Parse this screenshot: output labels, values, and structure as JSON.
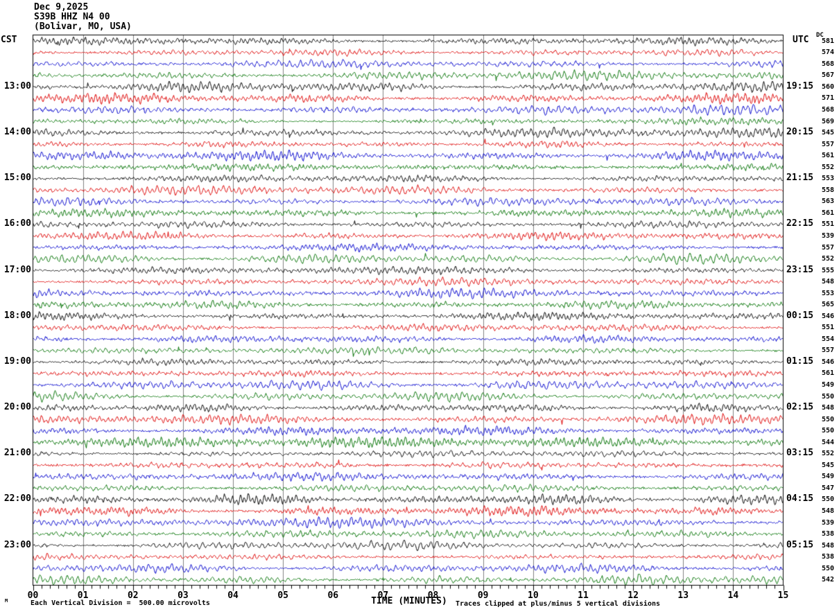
{
  "header": {
    "date": "Dec 9,2025",
    "station_line": "S39B HHZ N4 00",
    "location_line": "(Bolivar, MO, USA)"
  },
  "axes": {
    "left_timezone_label": "CST",
    "right_timezone_label": "UTC",
    "dc_column_label": "DC",
    "x_axis_title": "TIME (MINUTES)",
    "x_tick_labels": [
      "00",
      "01",
      "02",
      "03",
      "04",
      "05",
      "06",
      "07",
      "08",
      "09",
      "10",
      "11",
      "12",
      "13",
      "14",
      "15"
    ],
    "minutes_per_line": 15,
    "minor_tick_intervals_per_minute": 6
  },
  "left_hour_labels": [
    {
      "row": 4,
      "label": "13:00"
    },
    {
      "row": 8,
      "label": "14:00"
    },
    {
      "row": 12,
      "label": "15:00"
    },
    {
      "row": 16,
      "label": "16:00"
    },
    {
      "row": 20,
      "label": "17:00"
    },
    {
      "row": 24,
      "label": "18:00"
    },
    {
      "row": 28,
      "label": "19:00"
    },
    {
      "row": 32,
      "label": "20:00"
    },
    {
      "row": 36,
      "label": "21:00"
    },
    {
      "row": 40,
      "label": "22:00"
    },
    {
      "row": 44,
      "label": "23:00"
    }
  ],
  "right_utc_labels": [
    {
      "row": 4,
      "label": "19:15"
    },
    {
      "row": 8,
      "label": "20:15"
    },
    {
      "row": 12,
      "label": "21:15"
    },
    {
      "row": 16,
      "label": "22:15"
    },
    {
      "row": 20,
      "label": "23:15"
    },
    {
      "row": 24,
      "label": "00:15"
    },
    {
      "row": 28,
      "label": "01:15"
    },
    {
      "row": 32,
      "label": "02:15"
    },
    {
      "row": 36,
      "label": "03:15"
    },
    {
      "row": 40,
      "label": "04:15"
    },
    {
      "row": 44,
      "label": "05:15"
    }
  ],
  "dc_values": [
    581,
    574,
    568,
    567,
    560,
    571,
    568,
    569,
    545,
    557,
    561,
    552,
    553,
    558,
    563,
    561,
    551,
    539,
    557,
    552,
    555,
    548,
    553,
    565,
    546,
    551,
    554,
    557,
    546,
    561,
    549,
    550,
    548,
    550,
    550,
    544,
    552,
    545,
    549,
    547,
    550,
    548,
    539,
    538,
    548,
    538,
    550,
    542
  ],
  "footer": {
    "tiny_mark": "M",
    "scale_note": "Each Vertical Division =  500.00 microvolts",
    "clip_note": "Traces clipped at plus/minus 5 vertical divisions"
  },
  "style": {
    "trace_colors": [
      "#000000",
      "#dd0000",
      "#0000cc",
      "#007100"
    ],
    "grid_color": "#808080",
    "frame_color": "#000000",
    "background": "#ffffff"
  },
  "chart_data": {
    "type": "line",
    "subtype": "helicorder_seismogram",
    "title": "S39B HHZ N4 00 (Bolivar, MO, USA) Dec 9,2025",
    "xlabel": "TIME (MINUTES)",
    "x_range_minutes": [
      0,
      15
    ],
    "x_tick_labels": [
      "00",
      "01",
      "02",
      "03",
      "04",
      "05",
      "06",
      "07",
      "08",
      "09",
      "10",
      "11",
      "12",
      "13",
      "14",
      "15"
    ],
    "num_traces": 48,
    "minutes_per_trace": 15,
    "trace_color_cycle": [
      "black",
      "red",
      "blue",
      "green"
    ],
    "first_trace_start_local_cst": "12:00",
    "left_axis_hour_marks_cst": [
      "13:00",
      "14:00",
      "15:00",
      "16:00",
      "17:00",
      "18:00",
      "19:00",
      "20:00",
      "21:00",
      "22:00",
      "23:00"
    ],
    "right_axis_end_marks_utc": [
      "19:15",
      "20:15",
      "21:15",
      "22:15",
      "23:15",
      "00:15",
      "01:15",
      "02:15",
      "03:15",
      "04:15",
      "05:15"
    ],
    "dc_offset_per_trace": [
      581,
      574,
      568,
      567,
      560,
      571,
      568,
      569,
      545,
      557,
      561,
      552,
      553,
      558,
      563,
      561,
      551,
      539,
      557,
      552,
      555,
      548,
      553,
      565,
      546,
      551,
      554,
      557,
      546,
      561,
      549,
      550,
      548,
      550,
      550,
      544,
      552,
      545,
      549,
      547,
      550,
      548,
      539,
      538,
      548,
      538,
      550,
      542
    ],
    "amplitude_scale": "Each Vertical Division = 500.00 microvolts",
    "clipping": "Traces clipped at plus/minus 5 vertical divisions",
    "waveform_note": "Continuous microseismic background noise; per-sample values not recoverable from raster, traces rendered synthetically with matching character/amplitude"
  }
}
